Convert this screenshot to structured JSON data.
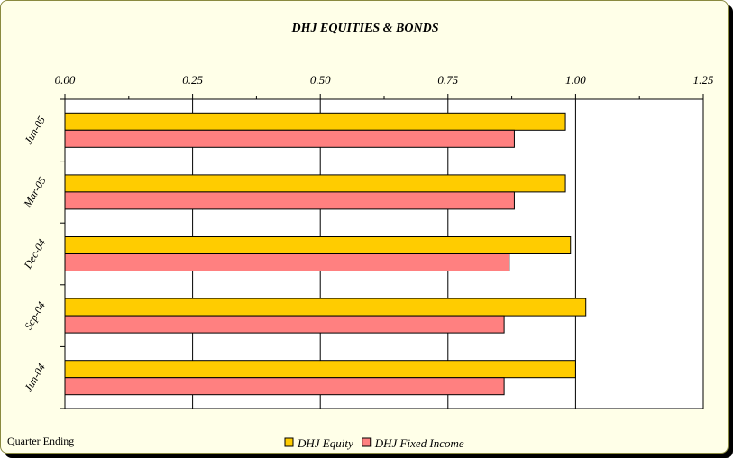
{
  "chart_data": {
    "type": "bar",
    "orientation": "horizontal",
    "title": "DHJ EQUITIES & BONDS",
    "axis_title": "Quarter Ending",
    "categories": [
      "Jun-05",
      "Mar-05",
      "Dec-04",
      "Sep-04",
      "Jun-04"
    ],
    "series": [
      {
        "name": "DHJ Equity",
        "color": "#ffcc00",
        "values": [
          0.98,
          0.98,
          0.99,
          1.02,
          1.0
        ]
      },
      {
        "name": "DHJ Fixed Income",
        "color": "#ff8080",
        "values": [
          0.88,
          0.88,
          0.87,
          0.86,
          0.86
        ]
      }
    ],
    "xlim": [
      0,
      1.25
    ],
    "ticks": [
      "0.00",
      "0.25",
      "0.50",
      "0.75",
      "1.00",
      "1.25"
    ],
    "tick_values": [
      0,
      0.25,
      0.5,
      0.75,
      1.0,
      1.25
    ],
    "grid": true,
    "legend_position": "bottom",
    "plot_background": "#ffffff",
    "chart_background": "#ffffe8"
  }
}
